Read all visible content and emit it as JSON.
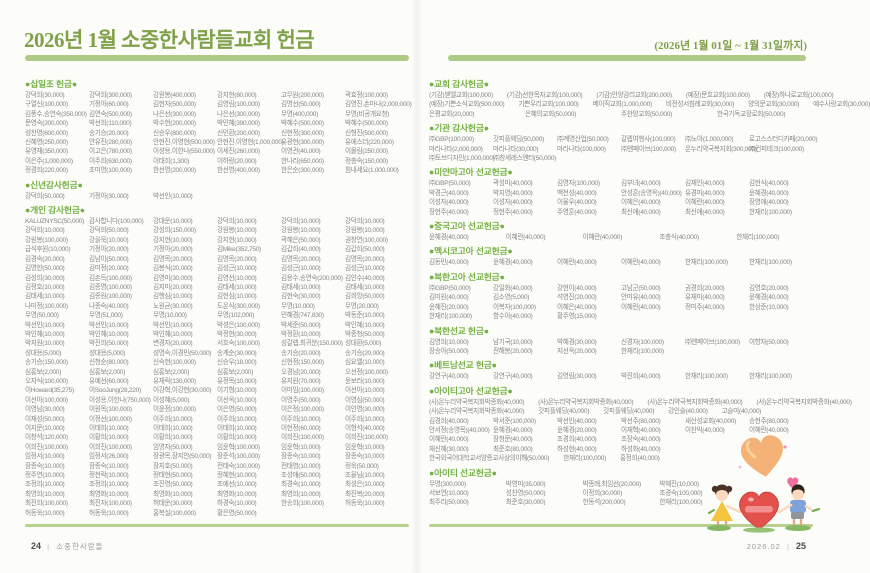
{
  "header": {
    "title": "2026년 1월 소중한사람들교회 헌금",
    "date_range": "(2026년 1월 01일 ~ 1월 31일까지)"
  },
  "footer": {
    "left_page_number": "24",
    "left_label": "소중한사람들",
    "right_label": "2026.02",
    "right_page_number": "25",
    "separator": "|"
  },
  "colors": {
    "title_green": "#7fa14a",
    "section_green": "#74b044",
    "bar_green": "#aecb86",
    "entry_gray": "#878787",
    "heart_red": "#e4504c",
    "heart_orange": "#f4a763"
  },
  "left_page": {
    "sections": [
      {
        "title": "●십일조 헌금●",
        "rows": [
          {
            "cols": 6,
            "items": [
              "강덕희(30,000)",
              "강덕희(300,000)",
              "강원봉(400,000)",
              "강지현(80,000)",
              "고무원(200,000)",
              "곽효정(100,000)"
            ]
          },
          {
            "cols": 6,
            "items": [
              "구열신(100,000)",
              "기정아(60,000)",
              "김현자(500,000)",
              "김영림(100,000)",
              "김명선(50,000)",
              "김영진,손마나(2,000,000)"
            ]
          },
          {
            "cols": 6,
            "items": [
              "김풍수,송연숙(350,000)",
              "김연숙(500,000)",
              "나은선(300,000)",
              "나은선(300,000)",
              "무명(400,000)",
              "무명(비공개요청)"
            ]
          },
          {
            "cols": 6,
            "items": [
              "문영숙(200,000)",
              "박선희(110,000)",
              "박수현(200,000)",
              "박민혜(390,000)",
              "박혜수(500,000)",
              "박혜수(500,000)"
            ]
          },
          {
            "cols": 6,
            "items": [
              "성찬영(600,000)",
              "송기승(20,000)",
              "신승우(800,000)",
              "신민환(200,000)",
              "신현정(300,000)",
              "신형진(500,000)"
            ]
          },
          {
            "cols": 6,
            "items": [
              "신혜영(250,000)",
              "안유진(280,000)",
              "안현진,이영현(500,000)",
              "안현진,이영현(1,000,000)",
              "유광현(300,000)",
              "유에스더(220,000)"
            ]
          },
          {
            "cols": 6,
            "items": [
              "유영재(350,000)",
              "이고은(780,000)",
              "이성용,이한나(550,000)",
              "이세진(260,000)",
              "이영관(40,000)",
              "이몰림(250,000)"
            ]
          },
          {
            "cols": 6,
            "items": [
              "이은주(1,000,000)",
              "이주희(630,000)",
              "이태희(1,300)",
              "이하랑(20,000)",
              "한나리(650,000)",
              "정충숙(150,000)"
            ]
          },
          {
            "cols": 6,
            "items": [
              "정경희(220,000)",
              "조미영(100,000)",
              "한선영(200,000)",
              "한선영(400,000)",
              "한은순(300,000)",
              "힘내세요(1,000,000)"
            ]
          }
        ]
      },
      {
        "title": "●신년감사헌금●",
        "rows": [
          {
            "cols": 6,
            "items": [
              "강덕희(50,000)",
              "기정아(30,000)",
              "박선인(10,000)"
            ]
          }
        ]
      },
      {
        "title": "●개인 감사헌금●",
        "rows": [
          {
            "cols": 6,
            "items": [
              "KALUZNYSC(50,000)",
              "감사합니다(100,000)",
              "강대운(10,000)",
              "강덕희(10,000)",
              "강덕희(10,000)",
              "강덕희(10,000)"
            ]
          },
          {
            "cols": 6,
            "items": [
              "강덕희(10,000)",
              "강덕희(50,000)",
              "강성희(150,000)",
              "강원봉(10,000)",
              "강원봉(10,000)",
              "강원봉(10,000)"
            ]
          },
          {
            "cols": 6,
            "items": [
              "강원봉(100,000)",
              "강을묵(10,000)",
              "강지현(10,000)",
              "강지현(10,000)",
              "곽혜은(50,000)",
              "권창연(100,000)"
            ]
          },
          {
            "cols": 6,
            "items": [
              "급식후원(10,000)",
              "기정아(20,000)",
              "기정아(20,000)",
              "김Mike(352,750)",
              "김갑희(40,000)",
              "김갑희(50,000)"
            ]
          },
          {
            "cols": 6,
            "items": [
              "김경숙(20,000)",
              "김남이(50,000)",
              "김명목(20,000)",
              "김명목(20,000)",
              "김명목(20,000)",
              "김명목(20,000)"
            ]
          },
          {
            "cols": 6,
            "items": [
              "김명한(50,000)",
              "김미정(20,000)",
              "김봉식(20,000)",
              "김성근(10,000)",
              "김성근(10,000)",
              "김성근(10,000)"
            ]
          },
          {
            "cols": 6,
            "items": [
              "김성희(30,000)",
              "김손득(100,000)",
              "김영미(30,000)",
              "김영선(10,000)",
              "김용수,송연숙(200,000)",
              "김인수(40,000)"
            ]
          },
          {
            "cols": 6,
            "items": [
              "김정호(10,000)",
              "김종명(100,000)",
              "김지미(20,000)",
              "김태세(10,000)",
              "김태세(10,000)",
              "김태세(10,000)"
            ]
          },
          {
            "cols": 6,
            "items": [
              "김태세(10,000)",
              "김종원(100,000)",
              "김행심(10,000)",
              "김현심(10,000)",
              "김현숙(30,000)",
              "김희앙(50,000)"
            ]
          },
          {
            "cols": 6,
            "items": [
              "나미정(100,000)",
              "나종숙(40,000)",
              "노원균(30,000)",
              "도온식(300,000)",
              "무명(10,000)",
              "무명(20,000)"
            ]
          },
          {
            "cols": 6,
            "items": [
              "무명(50,000)",
              "무명(51,000)",
              "무명(10,000)",
              "무명(102,000)",
              "민혜경(747,830)",
              "박동준(10,000)"
            ]
          },
          {
            "cols": 6,
            "items": [
              "박선인(10,000)",
              "박선인(10,000)",
              "박선인(10,000)",
              "박성은(100,000)",
              "박세준(50,000)",
              "박인혜(10,000)"
            ]
          },
          {
            "cols": 6,
            "items": [
              "박인혜(10,000)",
              "박인혜(10,000)",
              "박인혜(10,000)",
              "박정현(30,000)",
              "박정환(10,000)",
              "박종청(50,000)"
            ]
          },
          {
            "cols": 6,
            "items": [
              "박지원(10,000)",
              "박진희(50,000)",
              "변경자(20,000)",
              "서호숙(100,000)",
              "성갈렙,최귀분(150,000)",
              "성대환(5,000)"
            ]
          },
          {
            "cols": 6,
            "items": [
              "성대용(5,000)",
              "성대용(5,000)",
              "성명숙,이경민(50,000)",
              "송계순(30,000)",
              "송기승(20,000)",
              "송기승(20,000)"
            ]
          },
          {
            "cols": 6,
            "items": [
              "송기승(150,000)",
              "신청순(80,000)",
              "신숙현(100,000)",
              "신승우(18,000)",
              "신현정(150,000)",
              "심요엘(10,000)"
            ]
          },
          {
            "cols": 6,
            "items": [
              "심홍보(2,000)",
              "심홍보(2,000)",
              "심홍보(2,000)",
              "심홍보(2,000)",
              "오경남(20,000)",
              "오선정(100,000)"
            ]
          },
          {
            "cols": 6,
            "items": [
              "오자식(100,000)",
              "유예선(60,000)",
              "유재락(130,000)",
              "유정목(10,000)",
              "유지원(70,000)",
              "윤보라(10,000)"
            ]
          },
          {
            "cols": 6,
            "items": [
              "이Howard(35,275)",
              "이SooJung(28,220)",
              "이강혁,이강현(30,000)",
              "이기형(10,000)",
              "이미임(100,000)",
              "이선아(10,000)"
            ]
          },
          {
            "cols": 6,
            "items": [
              "이선아(100,000)",
              "이성용,이한나(750,000)",
              "이성혜(5,000)",
              "이선옥(10,000)",
              "이영주(50,000)",
              "이영심(50,000)"
            ]
          },
          {
            "cols": 6,
            "items": [
              "이영남(30,000)",
              "이원목(100,000)",
              "이윤정(100,000)",
              "이은영(50,000)",
              "이은정(100,000)",
              "이인영(30,000)"
            ]
          },
          {
            "cols": 6,
            "items": [
              "이재성(50,000)",
              "이정선(100,000)",
              "이주희(10,000)",
              "이주희(10,000)",
              "이주희(10,000)",
              "이주희(10,000)"
            ]
          },
          {
            "cols": 6,
            "items": [
              "이지문(10,000)",
              "이태희(10,000)",
              "이태희(10,000)",
              "이태희(10,000)",
              "이현정(60,000)",
              "이형석(40,000)"
            ]
          },
          {
            "cols": 6,
            "items": [
              "이창석(120,000)",
              "이황희(10,000)",
              "이황희(10,000)",
              "이황희(10,000)",
              "이희진(100,000)",
              "이희진(100,000)"
            ]
          },
          {
            "cols": 6,
            "items": [
              "이희진(100,000)",
              "이희진(100,000)",
              "임명자(50,000)",
              "임윤혁(100,000)",
              "임윤혁(10,000)",
              "임윤혁(10,000)"
            ]
          },
          {
            "cols": 6,
            "items": [
              "임정서(10,000)",
              "임정서(26,000)",
              "장광목,장지안(50,000)",
              "장준석(100,000)",
              "장종숙(10,000)",
              "장종숙(10,000)"
            ]
          },
          {
            "cols": 6,
            "items": [
              "장종숙(10,000)",
              "장종숙(10,000)",
              "장지호(50,000)",
              "전태숙(100,000)",
              "전태영(10,000)",
              "정욱(50,000)"
            ]
          },
          {
            "cols": 6,
            "items": [
              "정주연(10,000)",
              "정천락(10,000)",
              "정태현(50,000)",
              "정혜현(10,000)",
              "조성애(50,000)",
              "조율님(10,000)"
            ]
          },
          {
            "cols": 6,
            "items": [
              "조정희(10,000)",
              "조정희(10,000)",
              "조진영(50,000)",
              "조예선(10,000)",
              "최경숙(10,000)",
              "최성은(10,000)"
            ]
          },
          {
            "cols": 6,
            "items": [
              "최명희(10,000)",
              "최영화(10,000)",
              "최명화(10,000)",
              "최영화(10,000)",
              "최영희(10,000)",
              "최진복(20,000)"
            ]
          },
          {
            "cols": 6,
            "items": [
              "최진희(100,000)",
              "최진자(100,000)",
              "허태운(30,000)",
              "하경숙(10,000)",
              "한송희(100,000)",
              "허동욱(10,000)"
            ]
          },
          {
            "cols": 6,
            "items": [
              "허동욱(10,000)",
              "허동욱(10,000)",
              "홍복실(100,000)",
              "황은영(50,000)"
            ]
          }
        ]
      }
    ]
  },
  "right_page": {
    "sections": [
      {
        "title": "●교회 감사헌금●",
        "rows": [
          {
            "cols": 5,
            "flow": true,
            "items": [
              "(기감)벧엘교회(100,000)",
              "(기감)선한목자교회(100,000)",
              "(기감)안양감리교회(200,000)",
              "(예장)문호교회(100,000)",
              "(예장)하나로교회(100,000)"
            ]
          },
          {
            "cols": 6,
            "flow": true,
            "items": [
              "(예장)기쁜소식교회(500,000)",
              "기쁜우리교회(100,000)",
              "베이직교회(1,000,000)",
              "비전성서침례교회(30,000)",
              "양의문교회(30,000)",
              "예수사랑교회(30,000)"
            ]
          },
          {
            "cols": 4,
            "items": [
              "은평교회(20,000)",
              "은혜의교회(50,000)",
              "주찬양교회(50,000)",
              "한국기독교장로회(50,000)"
            ]
          }
        ]
      },
      {
        "title": "●기관 감사헌금●",
        "rows": [
          {
            "cols": 6,
            "items": [
              "㈜GBP(100,000)",
              "갓피플웨딩(50,000)",
              "㈜계명산업(50,000)",
              "갈렙여행사(100,000)",
              "㈜노아(1,000,000)",
              "로고스스터디카페(20,000)"
            ]
          },
          {
            "cols": 6,
            "items": [
              "마라나타(2,000,000)",
              "마라나타(30,000)",
              "마라나타(100,000)",
              "㈜엔페이브(100,000)",
              "온누리약국복지회(300,000)",
              "㈜컨피테크(100,000)"
            ]
          },
          {
            "cols": 6,
            "items": [
              "㈜토브디자인(1,000,000)",
              "㈜창세레스엔터(50,000)"
            ]
          }
        ]
      },
      {
        "title": "●미얀마고아 선교헌금●",
        "rows": [
          {
            "cols": 6,
            "items": [
              "㈜GBP(50,000)",
              "곽성미(40,000)",
              "김영자(100,000)",
              "김부녀(40,000)",
              "김재인(40,000)",
              "김현식(40,000)"
            ]
          },
          {
            "cols": 6,
            "items": [
              "박경근(40,000)",
              "박지영(40,000)",
              "백천성(40,000)",
              "안성훈(송명옥)(40,000)",
              "유경미(40,000)",
              "윤혜경(40,000)"
            ]
          },
          {
            "cols": 6,
            "items": [
              "이성자(40,000)",
              "이성자(40,000)",
              "이율우(40,000)",
              "이혜은(40,000)",
              "이혜란(40,000)",
              "장영애(40,000)"
            ]
          },
          {
            "cols": 6,
            "items": [
              "장현주(40,000)",
              "정현주(40,000)",
              "주영훈(40,000)",
              "최신애(40,000)",
              "최신애(40,000)",
              "한재리(100,000)"
            ]
          }
        ]
      },
      {
        "title": "●중국고아 선교헌금●",
        "rows": [
          {
            "cols": 5,
            "items": [
              "윤혜경(40,000)",
              "이혜란(40,000)",
              "이혜란(40,000)",
              "조충식(40,000)",
              "한재리(100,000)"
            ]
          }
        ]
      },
      {
        "title": "●멕시코고아 선교헌금●",
        "rows": [
          {
            "cols": 6,
            "items": [
              "김동민(40,000)",
              "윤혜경(40,000)",
              "이혜란(40,000)",
              "이혜란(40,000)",
              "한재리(100,000)",
              "한재리(100,000)"
            ]
          }
        ]
      },
      {
        "title": "●북한고아 선교헌금●",
        "rows": [
          {
            "cols": 6,
            "items": [
              "㈜GBP(50,000)",
              "강일화(40,000)",
              "강현이(40,000)",
              "고남군(50,000)",
              "권경희(20,000)",
              "김영호(20,000)"
            ]
          },
          {
            "cols": 6,
            "items": [
              "김미원(40,000)",
              "김소영(5,000)",
              "석영진(20,000)",
              "안미유(40,000)",
              "유재미(40,000)",
              "윤혜경(40,000)"
            ]
          },
          {
            "cols": 6,
            "items": [
              "윤혜진(20,000)",
              "이복자(100,000)",
              "이혜은(40,000)",
              "이혜란(40,000)",
              "정미주(40,000)",
              "한상준(10,000)"
            ]
          },
          {
            "cols": 6,
            "items": [
              "한재리(100,000)",
              "함수아(40,000)",
              "황주영(15,000)"
            ]
          }
        ]
      },
      {
        "title": "●북한선교 헌금●",
        "rows": [
          {
            "cols": 6,
            "items": [
              "김영희(10,000)",
              "남기국(10,000)",
              "박혜경(30,000)",
              "신경자(100,000)",
              "㈜엔페이브(100,000)",
              "이향자(50,000)"
            ]
          },
          {
            "cols": 6,
            "items": [
              "장승아(50,000)",
              "전해봉(20,000)",
              "지선옥(20,000)",
              "한재리(100,000)"
            ]
          }
        ]
      },
      {
        "title": "●베트남선교 헌금●",
        "rows": [
          {
            "cols": 6,
            "items": [
              "강연구(40,000)",
              "강연구(40,000)",
              "김영림(30,000)",
              "박진희(40,000)",
              "한재리(100,000)",
              "한재리(100,000)"
            ]
          }
        ]
      },
      {
        "title": "●아이티고아 선교헌금●",
        "rows": [
          {
            "cols": 4,
            "flow": true,
            "items": [
              "(사)온누리약국복지회박종화(40,000)",
              "(사)온누리약국복지회박종화(40,000)",
              "(사)온누리약국복지회박종화(40,000)",
              "(사)온누리약국복지회박종화(40,000)"
            ]
          },
          {
            "cols": 5,
            "flow": true,
            "items": [
              "(사)온누리약국복지회박종화(40,000)",
              "갓피플웨딩(40,000)",
              "갓피플웨딩(40,000)",
              "강인슬(40,000)",
              "고슬미(40,000)"
            ]
          },
          {
            "cols": 6,
            "items": [
              "김경희(40,000)",
              "박서준(100,000)",
              "박선인(40,000)",
              "박선주(80,000)",
              "새산성교회(40,000)",
              "송현주(80,000)"
            ]
          },
          {
            "cols": 6,
            "items": [
              "안서정(송명목)(40,000)",
              "윤혜경(40,000)",
              "윤혜경(20,000)",
              "이재혁(40,000)",
              "이찬익(40,000)",
              "이혜란(40,000)"
            ]
          },
          {
            "cols": 6,
            "items": [
              "이혜란(40,000)",
              "장청문(40,000)",
              "조경희(40,000)",
              "조장숙(40,000)"
            ]
          },
          {
            "cols": 6,
            "items": [
              "재신혜(30,000)",
              "최준호(80,000)",
              "하성현(40,000)",
              "하성화(40,000)"
            ]
          },
          {
            "cols": 3,
            "flow": true,
            "items": [
              "한국외국어대학교서양종교사상의이해(50,000)",
              "한재리(100,000)",
              "홍정희(40,000)"
            ]
          }
        ]
      },
      {
        "title": "●아이티 선교헌금●",
        "rows": [
          {
            "cols": 5,
            "items": [
              "무명(300,000)",
              "박영미(35,000)",
              "박종례,최임선(20,000)",
              "박혜진(10,000)"
            ]
          },
          {
            "cols": 5,
            "items": [
              "서보연(10,000)",
              "성찬영(50,000)",
              "이정희(30,000)",
              "조경숙(100,000)"
            ]
          },
          {
            "cols": 5,
            "items": [
              "최주리(50,000)",
              "최준호(30,000)",
              "한동석(200,000)",
              "한재리(100,000)"
            ]
          }
        ]
      }
    ]
  },
  "illustration": {
    "name": "children-holding-heart",
    "elements": [
      "orange-heart-balloon",
      "small-pink-heart",
      "girl-yellow-dress",
      "boy-blue-shirt",
      "big-red-heart",
      "grass"
    ]
  }
}
